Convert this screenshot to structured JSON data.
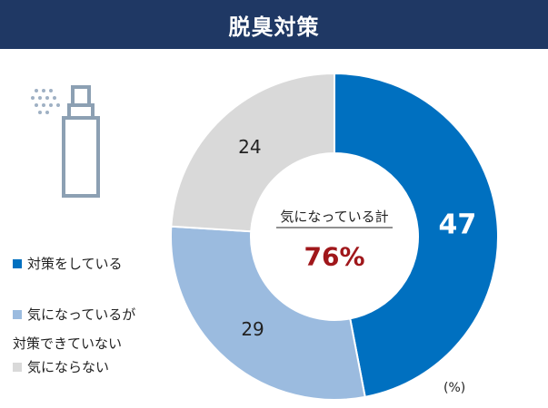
{
  "header": {
    "title": "脱臭対策"
  },
  "icons": {
    "spray": "spray-bottle-icon"
  },
  "chart_data": {
    "type": "pie",
    "subtype": "donut",
    "categories": [
      "対策をしている",
      "気になっているが対策できていない",
      "気にならない"
    ],
    "values": [
      47,
      29,
      24
    ],
    "colors": [
      "#0070c0",
      "#9bbbdf",
      "#d9d9d9"
    ],
    "value_label_colors": [
      "#ffffff",
      "#222222",
      "#222222"
    ],
    "center_label": "気になっている計",
    "center_value": "76%",
    "center_value_color": "#a0171b",
    "unit": "(%)",
    "legend": {
      "position": "left",
      "items": [
        {
          "lines": [
            "対策をしている"
          ],
          "color": "#0070c0"
        },
        {
          "lines": [
            "気になっているが",
            "対策できていない"
          ],
          "color": "#9bbbdf"
        },
        {
          "lines": [
            "気にならない"
          ],
          "color": "#d9d9d9"
        }
      ]
    }
  }
}
